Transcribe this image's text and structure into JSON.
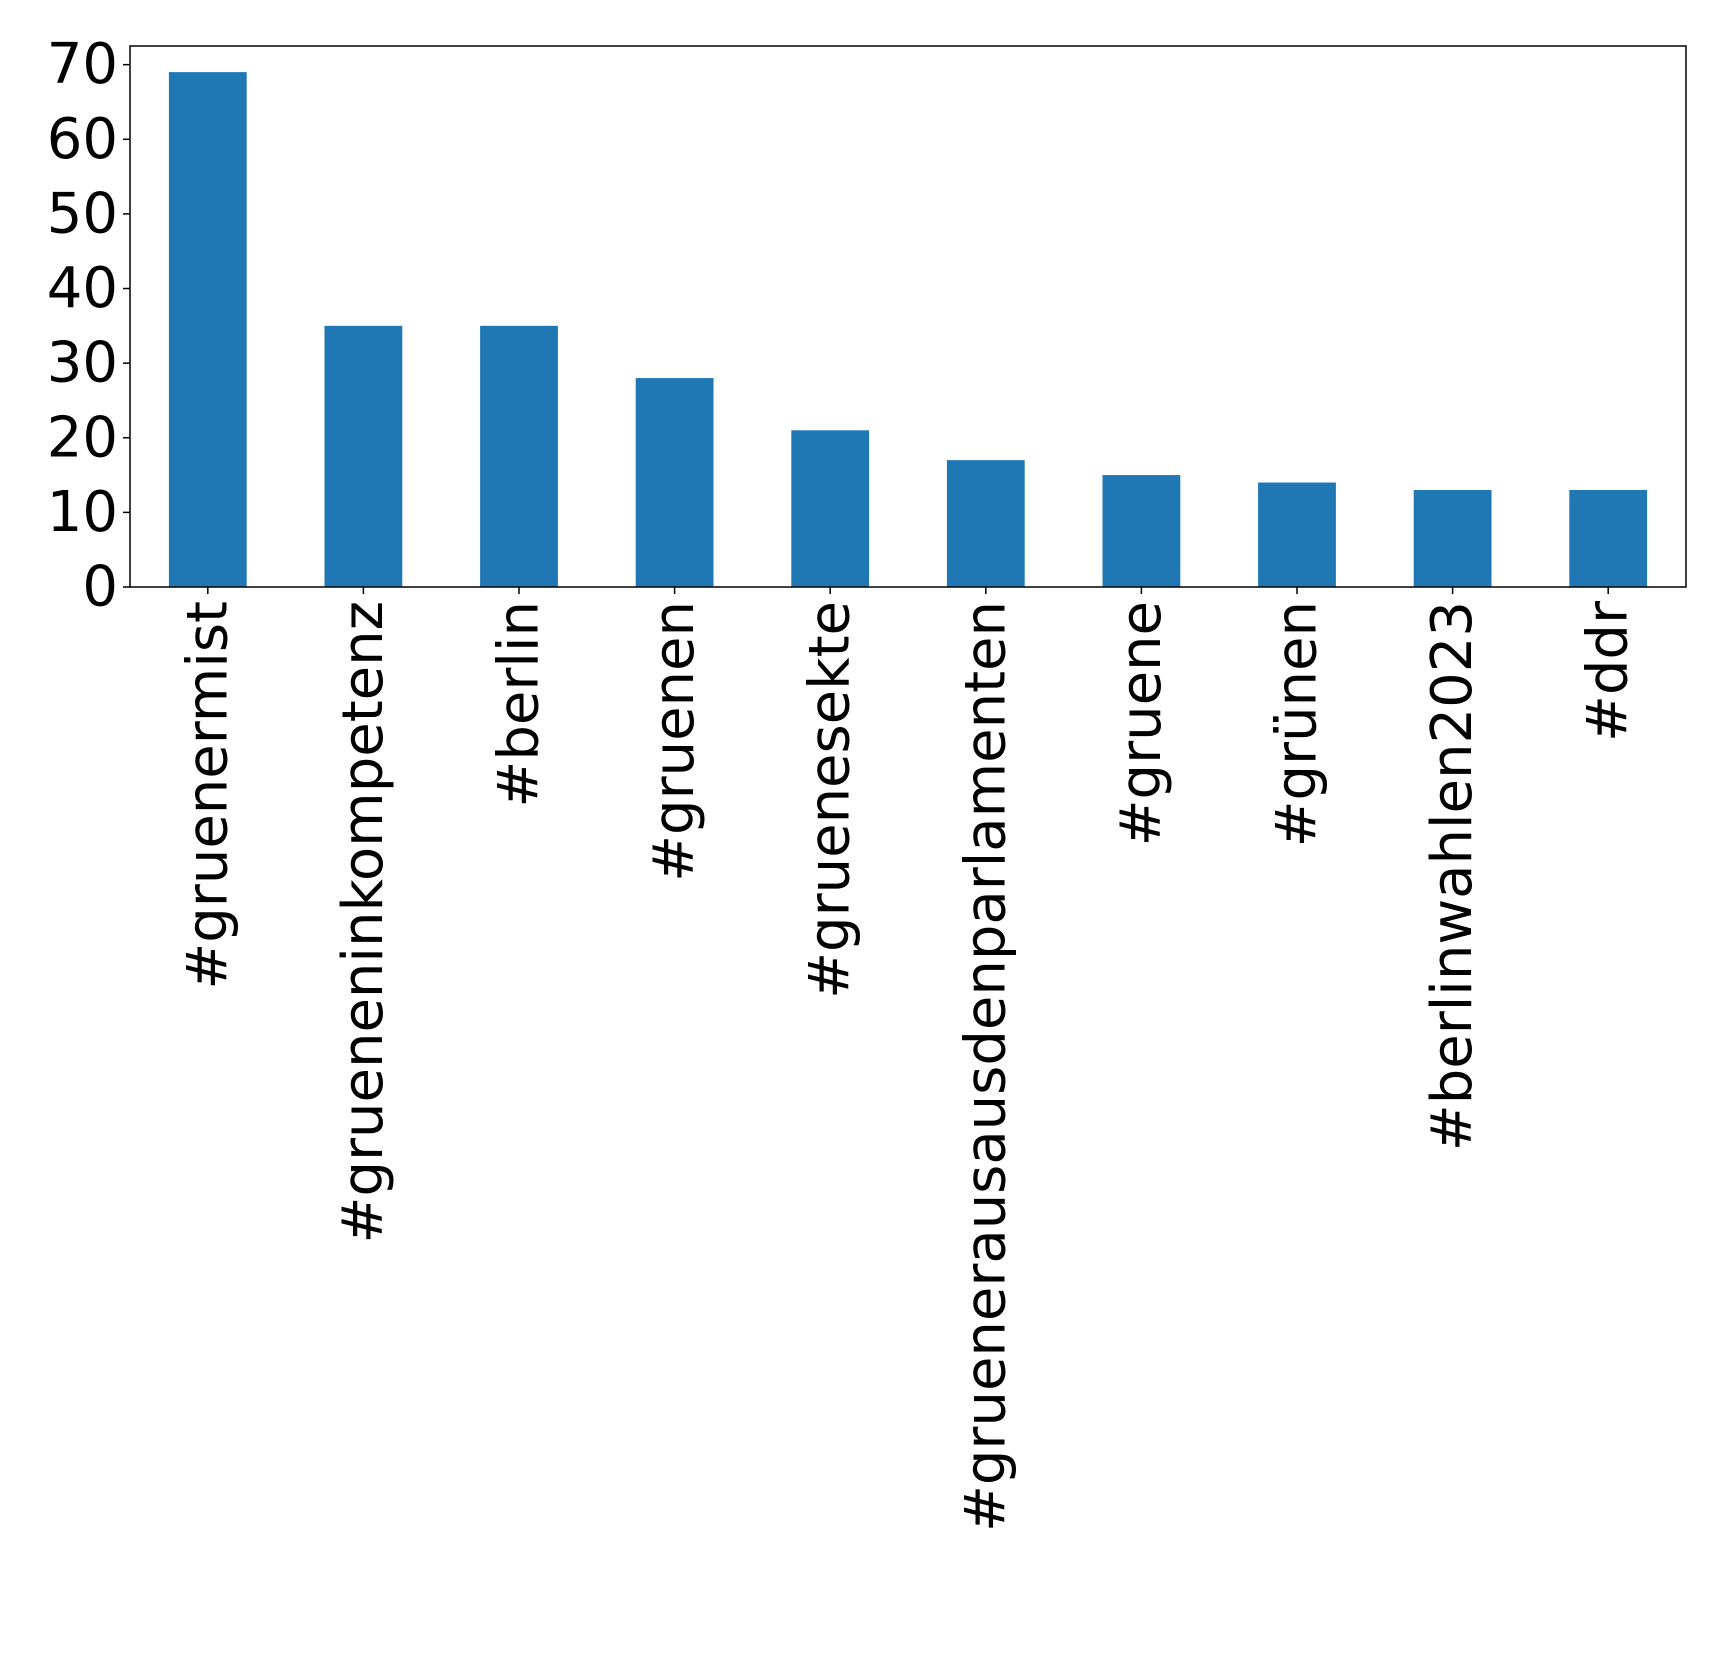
{
  "chart_data": {
    "type": "bar",
    "title": "",
    "xlabel": "",
    "ylabel": "",
    "categories": [
      "#gruenermist",
      "#grueneninkompetenz",
      "#berlin",
      "#gruenen",
      "#gruenesekte",
      "#gruenerausausdenparlamenten",
      "#gruene",
      "#grünen",
      "#berlinwahlen2023",
      "#ddr"
    ],
    "values": [
      69,
      35,
      35,
      28,
      21,
      17,
      15,
      14,
      13,
      13
    ],
    "ylim": [
      0,
      72.5
    ],
    "yticks": [
      0,
      10,
      20,
      30,
      40,
      50,
      60,
      70
    ],
    "ytick_labels": [
      "0",
      "10",
      "20",
      "30",
      "40",
      "50",
      "60",
      "70"
    ],
    "bar_color": "#1f77b4",
    "grid": false,
    "legend": "none"
  }
}
